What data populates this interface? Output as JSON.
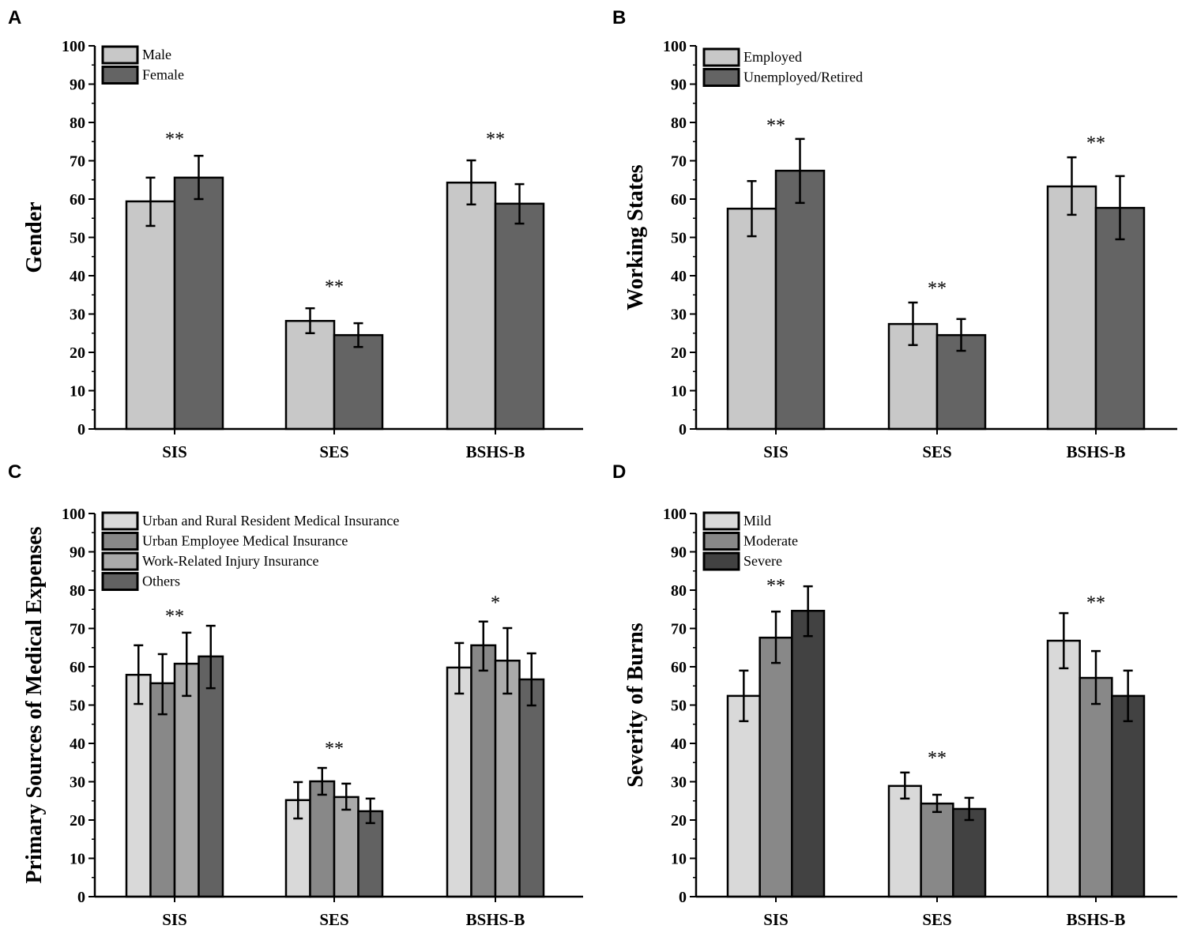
{
  "chart_data": [
    {
      "panel": "A",
      "type": "bar",
      "ylabel": "Gender",
      "ylim": [
        0,
        100
      ],
      "yticks": [
        0,
        10,
        20,
        30,
        40,
        50,
        60,
        70,
        80,
        90,
        100
      ],
      "categories": [
        "SIS",
        "SES",
        "BSHS-B"
      ],
      "series": [
        {
          "name": "Male",
          "color": "#c8c8c8",
          "values": [
            59.4,
            28.2,
            64.3
          ],
          "err_low": [
            53.0,
            25.0,
            58.6
          ],
          "err_high": [
            65.6,
            31.5,
            70.1
          ]
        },
        {
          "name": "Female",
          "color": "#646464",
          "values": [
            65.6,
            24.5,
            58.8
          ],
          "err_low": [
            60.0,
            21.4,
            53.6
          ],
          "err_high": [
            71.3,
            27.6,
            63.9
          ]
        }
      ],
      "annotations": [
        {
          "category": "SIS",
          "text": "**",
          "y": 77
        },
        {
          "category": "SES",
          "text": "**",
          "y": 38.5
        },
        {
          "category": "BSHS-B",
          "text": "**",
          "y": 77
        }
      ]
    },
    {
      "panel": "B",
      "type": "bar",
      "ylabel": "Working States",
      "ylim": [
        0,
        100
      ],
      "yticks": [
        0,
        10,
        20,
        30,
        40,
        50,
        60,
        70,
        80,
        90,
        100
      ],
      "categories": [
        "SIS",
        "SES",
        "BSHS-B"
      ],
      "series": [
        {
          "name": "Employed",
          "color": "#c8c8c8",
          "values": [
            57.5,
            27.4,
            63.3
          ],
          "err_low": [
            50.3,
            21.9,
            55.9
          ],
          "err_high": [
            64.7,
            33.0,
            70.9
          ]
        },
        {
          "name": "Unemployed/Retired",
          "color": "#646464",
          "values": [
            67.4,
            24.5,
            57.7
          ],
          "err_low": [
            59.0,
            20.4,
            49.5
          ],
          "err_high": [
            75.7,
            28.7,
            66.0
          ]
        }
      ],
      "annotations": [
        {
          "category": "SIS",
          "text": "**",
          "y": 80.5
        },
        {
          "category": "SES",
          "text": "**",
          "y": 38
        },
        {
          "category": "BSHS-B",
          "text": "**",
          "y": 76
        }
      ]
    },
    {
      "panel": "C",
      "type": "bar",
      "ylabel": "Primary Sources of Medical Expenses",
      "ylim": [
        0,
        100
      ],
      "yticks": [
        0,
        10,
        20,
        30,
        40,
        50,
        60,
        70,
        80,
        90,
        100
      ],
      "categories": [
        "SIS",
        "SES",
        "BSHS-B"
      ],
      "series": [
        {
          "name": "Urban and Rural Resident Medical Insurance",
          "color": "#d9d9d9",
          "values": [
            57.9,
            25.2,
            59.8
          ],
          "err_low": [
            50.3,
            20.4,
            53.0
          ],
          "err_high": [
            65.6,
            29.9,
            66.2
          ]
        },
        {
          "name": "Urban Employee Medical Insurance",
          "color": "#888888",
          "values": [
            55.7,
            30.1,
            65.6
          ],
          "err_low": [
            47.6,
            26.6,
            59.0
          ],
          "err_high": [
            63.3,
            33.6,
            71.8
          ]
        },
        {
          "name": "Work-Related Injury Insurance",
          "color": "#aaaaaa",
          "values": [
            60.8,
            26.0,
            61.6
          ],
          "err_low": [
            52.4,
            22.7,
            53.0
          ],
          "err_high": [
            68.9,
            29.5,
            70.1
          ]
        },
        {
          "name": "Others",
          "color": "#626262",
          "values": [
            62.7,
            22.3,
            56.7
          ],
          "err_low": [
            54.4,
            19.2,
            49.9
          ],
          "err_high": [
            70.7,
            25.6,
            63.5
          ]
        }
      ],
      "annotations": [
        {
          "category": "SIS",
          "text": "**",
          "y": 74.5
        },
        {
          "category": "SES",
          "text": "**",
          "y": 40
        },
        {
          "category": "BSHS-B",
          "text": "*",
          "y": 78
        }
      ]
    },
    {
      "panel": "D",
      "type": "bar",
      "ylabel": "Severity of Burns",
      "ylim": [
        0,
        100
      ],
      "yticks": [
        0,
        10,
        20,
        30,
        40,
        50,
        60,
        70,
        80,
        90,
        100
      ],
      "categories": [
        "SIS",
        "SES",
        "BSHS-B"
      ],
      "series": [
        {
          "name": "Mild",
          "color": "#d9d9d9",
          "values": [
            52.4,
            28.9,
            66.8
          ],
          "err_low": [
            45.8,
            25.6,
            59.6
          ],
          "err_high": [
            59.0,
            32.4,
            74.0
          ]
        },
        {
          "name": "Moderate",
          "color": "#888888",
          "values": [
            67.6,
            24.3,
            57.1
          ],
          "err_low": [
            61.0,
            22.1,
            50.3
          ],
          "err_high": [
            74.4,
            26.6,
            64.1
          ]
        },
        {
          "name": "Severe",
          "color": "#424242",
          "values": [
            74.6,
            22.9,
            52.4
          ],
          "err_low": [
            68.0,
            20.0,
            45.8
          ],
          "err_high": [
            81.0,
            25.8,
            59.0
          ]
        }
      ],
      "annotations": [
        {
          "category": "SIS",
          "text": "**",
          "y": 82.5
        },
        {
          "category": "SES",
          "text": "**",
          "y": 37.5
        },
        {
          "category": "BSHS-B",
          "text": "**",
          "y": 78
        }
      ]
    }
  ]
}
